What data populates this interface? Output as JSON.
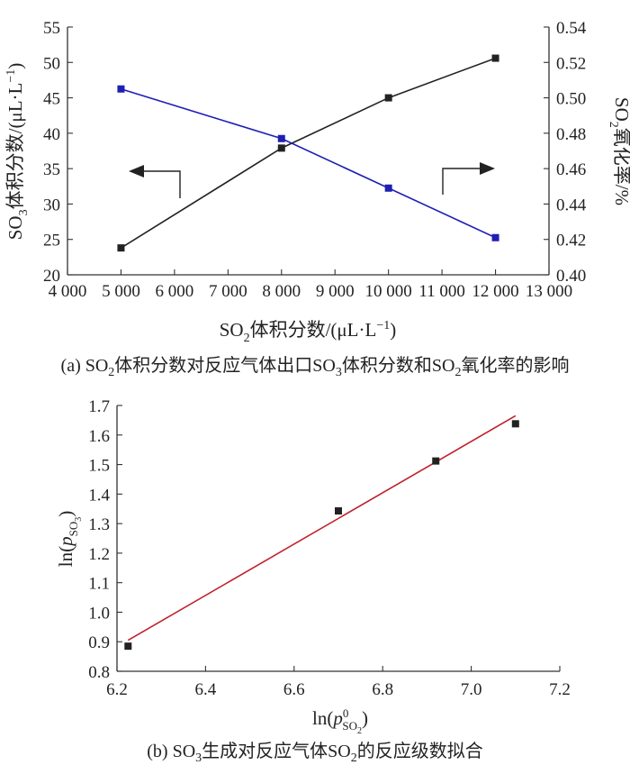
{
  "chart_data": [
    {
      "type": "line",
      "caption": {
        "prefix": "(a) SO",
        "sub1": "2",
        "mid": "体积分数对反应气体出口SO",
        "sub2": "3",
        "mid2": "体积分数和SO",
        "sub3": "2",
        "suffix": "氧化率的影响"
      },
      "xlabel": {
        "prefix": "SO",
        "sub": "2",
        "text": "体积分数/(μL·L",
        "sup": "−1",
        "close": ")"
      },
      "ylabel_left": {
        "prefix": "SO",
        "sub": "3",
        "text": "体积分数/(μL·L",
        "sup": "−1",
        "close": ")"
      },
      "ylabel_right": {
        "prefix": "SO",
        "sub": "2",
        "text": "氧化率/%"
      },
      "xlim": [
        4000,
        13000
      ],
      "ylim_left": [
        20,
        55
      ],
      "ylim_right": [
        0.4,
        0.54
      ],
      "x_ticks": [
        "4 000",
        "5 000",
        "6 000",
        "7 000",
        "8 000",
        "9 000",
        "10 000",
        "11 000",
        "12 000",
        "13 000"
      ],
      "y_left_ticks": [
        "20",
        "25",
        "30",
        "35",
        "40",
        "45",
        "50",
        "55"
      ],
      "y_right_ticks": [
        "0.40",
        "0.42",
        "0.44",
        "0.46",
        "0.48",
        "0.50",
        "0.52",
        "0.54"
      ],
      "series": [
        {
          "axis": "left",
          "color": "#222222",
          "marker": "square",
          "x": [
            5000,
            8000,
            10000,
            12000
          ],
          "y": [
            23.8,
            37.9,
            45.0,
            50.6
          ]
        },
        {
          "axis": "right",
          "color": "#1f1fb4",
          "marker": "square",
          "x": [
            5000,
            8000,
            10000,
            12000
          ],
          "y": [
            0.505,
            0.477,
            0.449,
            0.421
          ]
        }
      ],
      "annotations": [
        {
          "type": "arrow",
          "points_to": "left",
          "refers_to": "left-axis series"
        },
        {
          "type": "arrow",
          "points_to": "right",
          "refers_to": "right-axis series"
        }
      ]
    },
    {
      "type": "scatter",
      "caption": {
        "prefix": "(b) SO",
        "sub1": "3",
        "mid": "生成对反应气体SO",
        "sub2": "2",
        "suffix": "的反应级数拟合"
      },
      "xlabel": {
        "prefix": "ln(",
        "italic": "p",
        "sup": "0",
        "sub": "SO",
        "subsub": "2",
        "close": ")"
      },
      "ylabel": {
        "prefix": "ln(",
        "italic": "p",
        "sub": "SO",
        "subsub": "3",
        "close": ")"
      },
      "xlim": [
        6.2,
        7.2
      ],
      "ylim": [
        0.8,
        1.7
      ],
      "x_ticks": [
        "6.2",
        "6.4",
        "6.6",
        "6.8",
        "7.0",
        "7.2"
      ],
      "y_ticks": [
        "0.8",
        "0.9",
        "1.0",
        "1.1",
        "1.2",
        "1.3",
        "1.4",
        "1.5",
        "1.6",
        "1.7"
      ],
      "points": {
        "color": "#222222",
        "x": [
          6.225,
          6.7,
          6.92,
          7.1
        ],
        "y": [
          0.885,
          1.343,
          1.512,
          1.638
        ]
      },
      "fit_line": {
        "color": "#c0202a",
        "x": [
          6.225,
          7.1
        ],
        "y": [
          0.905,
          1.665
        ]
      }
    }
  ]
}
